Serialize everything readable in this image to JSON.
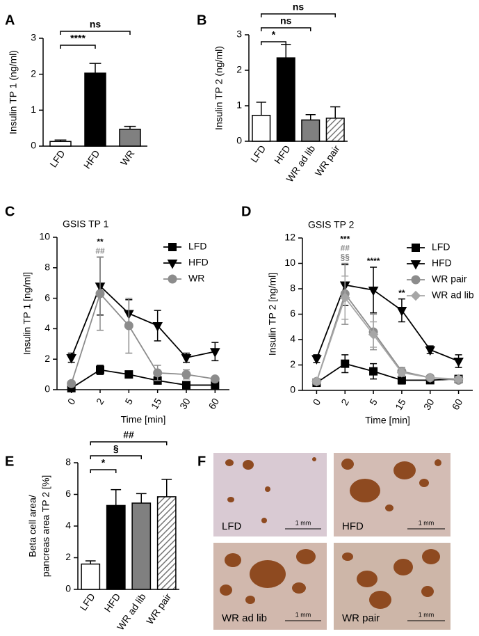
{
  "chart_data": [
    {
      "panel": "A",
      "type": "bar",
      "ylabel": "Insulin TP 1 (ng/ml)",
      "categories": [
        "LFD",
        "HFD",
        "WR"
      ],
      "values": [
        0.13,
        2.03,
        0.47
      ],
      "errors": [
        0.04,
        0.27,
        0.08
      ],
      "colors": [
        "#ffffff",
        "#000000",
        "#808080"
      ],
      "hatched": [
        false,
        false,
        false
      ],
      "ylim": [
        0,
        3
      ],
      "yticks": [
        0,
        1,
        2,
        3
      ],
      "brackets": [
        {
          "label": "****",
          "from": 0,
          "to": 1
        },
        {
          "label": "ns",
          "from": 0,
          "to": 2
        }
      ]
    },
    {
      "panel": "B",
      "type": "bar",
      "ylabel": "Insulin TP 2 (ng/ml)",
      "categories": [
        "LFD",
        "HFD",
        "WR ad lib",
        "WR pair"
      ],
      "values": [
        0.73,
        2.35,
        0.6,
        0.65
      ],
      "errors": [
        0.37,
        0.38,
        0.15,
        0.32
      ],
      "colors": [
        "#ffffff",
        "#000000",
        "#808080",
        "#ffffff"
      ],
      "hatched": [
        false,
        false,
        false,
        true
      ],
      "ylim": [
        0,
        3
      ],
      "yticks": [
        0,
        1,
        2,
        3
      ],
      "brackets": [
        {
          "label": "*",
          "from": 0,
          "to": 1
        },
        {
          "label": "ns",
          "from": 0,
          "to": 2
        },
        {
          "label": "ns",
          "from": 0,
          "to": 3
        }
      ]
    },
    {
      "panel": "C",
      "type": "line",
      "title": "GSIS TP 1",
      "ylabel": "Insulin TP 1 [ng/ml]",
      "xlabel": "Time [min]",
      "categories": [
        "0",
        "2",
        "5",
        "15",
        "30",
        "60"
      ],
      "ylim": [
        0,
        10
      ],
      "yticks": [
        0,
        2,
        4,
        6,
        8,
        10
      ],
      "legend": "upper right",
      "series": [
        {
          "name": "LFD",
          "color": "#000000",
          "marker": "square",
          "values": [
            0.1,
            1.3,
            1.0,
            0.6,
            0.3,
            0.3
          ],
          "errors": [
            0.05,
            0.3,
            0.1,
            0.2,
            0.1,
            0.1
          ]
        },
        {
          "name": "HFD",
          "color": "#000000",
          "marker": "triangle-down",
          "values": [
            2.1,
            6.8,
            5.0,
            4.2,
            2.1,
            2.5
          ],
          "errors": [
            0.3,
            1.9,
            0.9,
            1.0,
            0.3,
            0.6
          ]
        },
        {
          "name": "WR",
          "color": "#8c8c8c",
          "marker": "circle",
          "values": [
            0.4,
            6.3,
            4.2,
            1.1,
            1.0,
            0.7
          ],
          "errors": [
            0.1,
            2.4,
            1.8,
            0.5,
            0.3,
            0.1
          ]
        }
      ],
      "annotations": [
        {
          "x": "2",
          "text": "**",
          "color": "#000000"
        },
        {
          "x": "2",
          "text": "##",
          "color": "#8c8c8c"
        }
      ]
    },
    {
      "panel": "D",
      "type": "line",
      "title": "GSIS TP 2",
      "ylabel": "Insulin TP 2 [ng/ml]",
      "xlabel": "Time [min]",
      "categories": [
        "0",
        "2",
        "5",
        "15",
        "30",
        "60"
      ],
      "ylim": [
        0,
        12
      ],
      "yticks": [
        0,
        2,
        4,
        6,
        8,
        10,
        12
      ],
      "legend": "upper right",
      "series": [
        {
          "name": "LFD",
          "color": "#000000",
          "marker": "square",
          "values": [
            0.6,
            2.1,
            1.5,
            0.8,
            0.8,
            0.9
          ],
          "errors": [
            0.2,
            0.7,
            0.6,
            0.3,
            0.1,
            0.2
          ]
        },
        {
          "name": "HFD",
          "color": "#000000",
          "marker": "triangle-down",
          "values": [
            2.5,
            8.3,
            7.9,
            6.3,
            3.2,
            2.3
          ],
          "errors": [
            0.3,
            1.6,
            1.8,
            0.9,
            0.3,
            0.5
          ]
        },
        {
          "name": "WR pair",
          "color": "#8c8c8c",
          "marker": "circle",
          "values": [
            0.7,
            7.6,
            4.6,
            1.5,
            1.0,
            0.8
          ],
          "errors": [
            0.2,
            2.4,
            1.4,
            0.3,
            0.1,
            0.2
          ]
        },
        {
          "name": "WR  ad lib",
          "color": "#a6a6a6",
          "marker": "diamond",
          "values": [
            0.7,
            7.3,
            4.4,
            1.4,
            1.0,
            0.9
          ],
          "errors": [
            0.2,
            1.7,
            1.0,
            0.3,
            0.1,
            0.2
          ]
        }
      ],
      "annotations": [
        {
          "x": "2",
          "text": "***",
          "color": "#000000"
        },
        {
          "x": "2",
          "text": "##",
          "color": "#8c8c8c"
        },
        {
          "x": "2",
          "text": "§§",
          "color": "#8c8c8c"
        },
        {
          "x": "5",
          "text": "****",
          "color": "#000000"
        },
        {
          "x": "15",
          "text": "**",
          "color": "#000000"
        }
      ]
    },
    {
      "panel": "E",
      "type": "bar",
      "ylabel": [
        "Beta cell area/",
        "pancreas area TP 2 [%]"
      ],
      "categories": [
        "LFD",
        "HFD",
        "WR ad lib",
        "WR pair"
      ],
      "values": [
        1.6,
        5.3,
        5.45,
        5.85
      ],
      "errors": [
        0.2,
        1.0,
        0.6,
        1.1
      ],
      "colors": [
        "#ffffff",
        "#000000",
        "#808080",
        "#ffffff"
      ],
      "hatched": [
        false,
        false,
        false,
        true
      ],
      "ylim": [
        0,
        8
      ],
      "yticks": [
        0,
        2,
        4,
        6,
        8
      ],
      "brackets": [
        {
          "label": "*",
          "from": 0,
          "to": 1
        },
        {
          "label": "§",
          "from": 0,
          "to": 2
        },
        {
          "label": "##",
          "from": 0,
          "to": 3
        }
      ]
    }
  ],
  "panel_f": {
    "label": "F",
    "images": [
      {
        "label": "LFD",
        "scale": "1 mm"
      },
      {
        "label": "HFD",
        "scale": "1 mm"
      },
      {
        "label": "WR ad lib",
        "scale": "1 mm"
      },
      {
        "label": "WR pair",
        "scale": "1 mm"
      }
    ]
  }
}
